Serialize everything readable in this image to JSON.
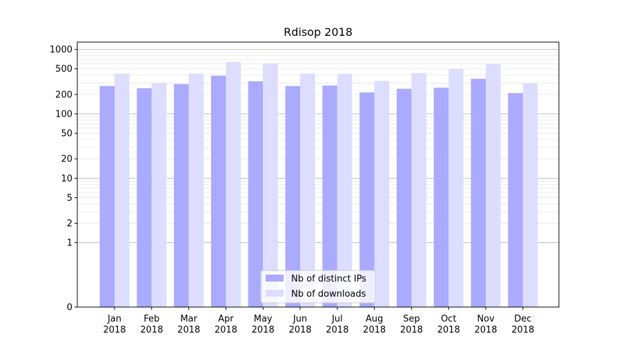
{
  "chart_data": {
    "type": "bar",
    "title": "Rdisop 2018",
    "xlabel": "",
    "ylabel": "",
    "y_scale": "symlog",
    "ylim": [
      0,
      1300
    ],
    "y_ticks": [
      0,
      1,
      2,
      5,
      10,
      20,
      50,
      100,
      200,
      500,
      1000
    ],
    "y_tick_labels": [
      "0",
      "1",
      "2",
      "5",
      "10",
      "20",
      "50",
      "100",
      "200",
      "500",
      "1000"
    ],
    "grid": "horizontal major and minor lines",
    "legend_position": "lower-center",
    "categories": [
      {
        "month": "Jan",
        "year": "2018"
      },
      {
        "month": "Feb",
        "year": "2018"
      },
      {
        "month": "Mar",
        "year": "2018"
      },
      {
        "month": "Apr",
        "year": "2018"
      },
      {
        "month": "May",
        "year": "2018"
      },
      {
        "month": "Jun",
        "year": "2018"
      },
      {
        "month": "Jul",
        "year": "2018"
      },
      {
        "month": "Aug",
        "year": "2018"
      },
      {
        "month": "Sep",
        "year": "2018"
      },
      {
        "month": "Oct",
        "year": "2018"
      },
      {
        "month": "Nov",
        "year": "2018"
      },
      {
        "month": "Dec",
        "year": "2018"
      }
    ],
    "series": [
      {
        "name": "Nb of distinct IPs",
        "color": "#aaaaff",
        "values": [
          270,
          250,
          290,
          390,
          320,
          270,
          275,
          215,
          245,
          255,
          350,
          210
        ]
      },
      {
        "name": "Nb of downloads",
        "color": "#ddddff",
        "values": [
          420,
          300,
          420,
          640,
          610,
          420,
          420,
          325,
          430,
          495,
          590,
          295
        ]
      }
    ]
  }
}
